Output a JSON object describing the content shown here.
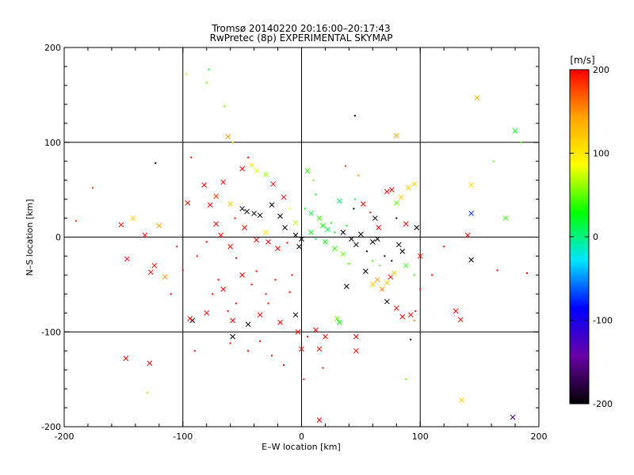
{
  "chart_data": {
    "type": "scatter",
    "title": "Tromsø 20140220 20:16:00–20:17:43",
    "subtitle": "RwPretec (8p) EXPERIMENTAL SKYMAP",
    "xlabel": "E–W location [km]",
    "ylabel": "N–S location [km]",
    "xlim": [
      -200,
      200
    ],
    "ylim": [
      -200,
      200
    ],
    "xticks": [
      -200,
      -100,
      0,
      100,
      200
    ],
    "yticks": [
      -200,
      -100,
      0,
      100,
      200
    ],
    "grid": true,
    "colorbar": {
      "label": "[m/s]",
      "range": [
        -200,
        200
      ],
      "ticks": [
        200,
        100,
        0,
        -100,
        -200
      ],
      "colors": [
        "#000000",
        "#6a00a8",
        "#0000ff",
        "#00e5ff",
        "#00ff00",
        "#ffff00",
        "#ffa500",
        "#ff0000"
      ]
    },
    "points": [
      {
        "x": -190,
        "y": 17,
        "v": 180,
        "m": "dot"
      },
      {
        "x": -176,
        "y": 52,
        "v": 180,
        "m": "dot"
      },
      {
        "x": -152,
        "y": 13,
        "v": 200,
        "m": "cross"
      },
      {
        "x": -147,
        "y": -23,
        "v": 200,
        "m": "cross"
      },
      {
        "x": -142,
        "y": 20,
        "v": 120,
        "m": "cross"
      },
      {
        "x": -132,
        "y": 2,
        "v": 200,
        "m": "cross"
      },
      {
        "x": -127,
        "y": -37,
        "v": 200,
        "m": "cross"
      },
      {
        "x": -124,
        "y": -30,
        "v": 200,
        "m": "cross"
      },
      {
        "x": -120,
        "y": 12,
        "v": 140,
        "m": "cross"
      },
      {
        "x": -115,
        "y": -42,
        "v": 150,
        "m": "cross"
      },
      {
        "x": -148,
        "y": -128,
        "v": 200,
        "m": "cross"
      },
      {
        "x": -128,
        "y": -133,
        "v": 200,
        "m": "cross"
      },
      {
        "x": -130,
        "y": -164,
        "v": 120,
        "m": "dot"
      },
      {
        "x": -123,
        "y": 78,
        "v": -200,
        "m": "dot"
      },
      {
        "x": -97,
        "y": 172,
        "v": 110,
        "m": "dot"
      },
      {
        "x": -78,
        "y": 177,
        "v": 30,
        "m": "dot"
      },
      {
        "x": -80,
        "y": 163,
        "v": 50,
        "m": "dot"
      },
      {
        "x": -65,
        "y": 138,
        "v": 50,
        "m": "dot"
      },
      {
        "x": -62,
        "y": 106,
        "v": 150,
        "m": "cross"
      },
      {
        "x": -58,
        "y": 100,
        "v": 110,
        "m": "dot"
      },
      {
        "x": -93,
        "y": 84,
        "v": 200,
        "m": "dot"
      },
      {
        "x": -96,
        "y": 36,
        "v": 200,
        "m": "cross"
      },
      {
        "x": -82,
        "y": 55,
        "v": 200,
        "m": "cross"
      },
      {
        "x": -77,
        "y": 34,
        "v": 200,
        "m": "cross"
      },
      {
        "x": -72,
        "y": 43,
        "v": 180,
        "m": "cross"
      },
      {
        "x": -66,
        "y": 58,
        "v": 200,
        "m": "cross"
      },
      {
        "x": -60,
        "y": 35,
        "v": 120,
        "m": "cross"
      },
      {
        "x": -50,
        "y": 72,
        "v": 200,
        "m": "cross"
      },
      {
        "x": -45,
        "y": 84,
        "v": 200,
        "m": "dot"
      },
      {
        "x": -42,
        "y": 76,
        "v": 100,
        "m": "cross"
      },
      {
        "x": -38,
        "y": 70,
        "v": 80,
        "m": "cross"
      },
      {
        "x": -30,
        "y": 66,
        "v": 60,
        "m": "cross"
      },
      {
        "x": -24,
        "y": 56,
        "v": 200,
        "m": "cross"
      },
      {
        "x": -15,
        "y": 42,
        "v": 200,
        "m": "cross"
      },
      {
        "x": -50,
        "y": 30,
        "v": -200,
        "m": "cross"
      },
      {
        "x": -46,
        "y": 27,
        "v": -200,
        "m": "cross"
      },
      {
        "x": -40,
        "y": 25,
        "v": -200,
        "m": "cross"
      },
      {
        "x": -35,
        "y": 23,
        "v": -200,
        "m": "cross"
      },
      {
        "x": -25,
        "y": 34,
        "v": -200,
        "m": "cross"
      },
      {
        "x": -18,
        "y": 22,
        "v": -200,
        "m": "cross"
      },
      {
        "x": -14,
        "y": 10,
        "v": -200,
        "m": "cross"
      },
      {
        "x": -5,
        "y": 2,
        "v": -200,
        "m": "cross"
      },
      {
        "x": 0,
        "y": -2,
        "v": -200,
        "m": "cross"
      },
      {
        "x": -2,
        "y": -10,
        "v": -200,
        "m": "cross"
      },
      {
        "x": -56,
        "y": 20,
        "v": 200,
        "m": "dot"
      },
      {
        "x": -72,
        "y": 14,
        "v": 200,
        "m": "cross"
      },
      {
        "x": -68,
        "y": 2,
        "v": 200,
        "m": "cross"
      },
      {
        "x": -60,
        "y": -10,
        "v": 200,
        "m": "cross"
      },
      {
        "x": -55,
        "y": -22,
        "v": 200,
        "m": "dot"
      },
      {
        "x": -48,
        "y": 10,
        "v": 200,
        "m": "cross"
      },
      {
        "x": -38,
        "y": -3,
        "v": 200,
        "m": "cross"
      },
      {
        "x": -30,
        "y": 5,
        "v": 100,
        "m": "cross"
      },
      {
        "x": -28,
        "y": -5,
        "v": 200,
        "m": "cross"
      },
      {
        "x": -20,
        "y": -12,
        "v": 200,
        "m": "cross"
      },
      {
        "x": -12,
        "y": -6,
        "v": 200,
        "m": "dot"
      },
      {
        "x": -92,
        "y": -88,
        "v": -200,
        "m": "cross"
      },
      {
        "x": -94,
        "y": -86,
        "v": 200,
        "m": "cross"
      },
      {
        "x": -80,
        "y": -80,
        "v": 200,
        "m": "cross"
      },
      {
        "x": -75,
        "y": -60,
        "v": 200,
        "m": "dot"
      },
      {
        "x": -70,
        "y": -45,
        "v": 200,
        "m": "dot"
      },
      {
        "x": -66,
        "y": -55,
        "v": 200,
        "m": "cross"
      },
      {
        "x": -62,
        "y": -78,
        "v": 200,
        "m": "dot"
      },
      {
        "x": -58,
        "y": -88,
        "v": 200,
        "m": "cross"
      },
      {
        "x": -55,
        "y": -70,
        "v": 200,
        "m": "dot"
      },
      {
        "x": -50,
        "y": -40,
        "v": 200,
        "m": "cross"
      },
      {
        "x": -45,
        "y": -92,
        "v": -200,
        "m": "cross"
      },
      {
        "x": -42,
        "y": -50,
        "v": 200,
        "m": "dot"
      },
      {
        "x": -38,
        "y": -36,
        "v": 200,
        "m": "dot"
      },
      {
        "x": -35,
        "y": -82,
        "v": 200,
        "m": "cross"
      },
      {
        "x": -30,
        "y": -60,
        "v": 200,
        "m": "dot"
      },
      {
        "x": -28,
        "y": -70,
        "v": 200,
        "m": "dot"
      },
      {
        "x": -22,
        "y": -45,
        "v": 200,
        "m": "dot"
      },
      {
        "x": -18,
        "y": -90,
        "v": 200,
        "m": "cross"
      },
      {
        "x": -10,
        "y": -58,
        "v": 200,
        "m": "dot"
      },
      {
        "x": -5,
        "y": -82,
        "v": -200,
        "m": "cross"
      },
      {
        "x": -3,
        "y": -100,
        "v": 200,
        "m": "cross"
      },
      {
        "x": -8,
        "y": -40,
        "v": 200,
        "m": "dot"
      },
      {
        "x": -58,
        "y": -105,
        "v": -200,
        "m": "cross"
      },
      {
        "x": -60,
        "y": -112,
        "v": 200,
        "m": "dot"
      },
      {
        "x": -45,
        "y": -120,
        "v": 200,
        "m": "dot"
      },
      {
        "x": -35,
        "y": -110,
        "v": 200,
        "m": "dot"
      },
      {
        "x": -25,
        "y": -125,
        "v": 200,
        "m": "dot"
      },
      {
        "x": -15,
        "y": -135,
        "v": 200,
        "m": "dot"
      },
      {
        "x": 0,
        "y": -118,
        "v": 200,
        "m": "cross"
      },
      {
        "x": 5,
        "y": -105,
        "v": 200,
        "m": "dot"
      },
      {
        "x": 12,
        "y": -98,
        "v": 200,
        "m": "cross"
      },
      {
        "x": 15,
        "y": -118,
        "v": 200,
        "m": "cross"
      },
      {
        "x": 18,
        "y": -138,
        "v": 200,
        "m": "dot"
      },
      {
        "x": 20,
        "y": -105,
        "v": 200,
        "m": "cross"
      },
      {
        "x": 15,
        "y": -193,
        "v": 200,
        "m": "cross"
      },
      {
        "x": 2,
        "y": -150,
        "v": 200,
        "m": "dot"
      },
      {
        "x": -90,
        "y": -120,
        "v": 200,
        "m": "dot"
      },
      {
        "x": -110,
        "y": -60,
        "v": 200,
        "m": "dot"
      },
      {
        "x": -100,
        "y": -35,
        "v": 200,
        "m": "dot"
      },
      {
        "x": -88,
        "y": -20,
        "v": 200,
        "m": "dot"
      },
      {
        "x": -80,
        "y": -5,
        "v": 200,
        "m": "dot"
      },
      {
        "x": -105,
        "y": -10,
        "v": 200,
        "m": "dot"
      },
      {
        "x": 3,
        "y": 30,
        "v": 20,
        "m": "dot"
      },
      {
        "x": 8,
        "y": 25,
        "v": 10,
        "m": "cross"
      },
      {
        "x": 5,
        "y": 70,
        "v": 40,
        "m": "cross"
      },
      {
        "x": 10,
        "y": 60,
        "v": 50,
        "m": "dot"
      },
      {
        "x": 12,
        "y": 45,
        "v": 30,
        "m": "dot"
      },
      {
        "x": 15,
        "y": 20,
        "v": 40,
        "m": "cross"
      },
      {
        "x": 18,
        "y": 12,
        "v": 30,
        "m": "cross"
      },
      {
        "x": 22,
        "y": 8,
        "v": 10,
        "m": "cross"
      },
      {
        "x": 25,
        "y": 15,
        "v": 20,
        "m": "dot"
      },
      {
        "x": 28,
        "y": 5,
        "v": 30,
        "m": "dot"
      },
      {
        "x": 8,
        "y": 5,
        "v": 20,
        "m": "cross"
      },
      {
        "x": 12,
        "y": -2,
        "v": 10,
        "m": "dot"
      },
      {
        "x": 20,
        "y": -5,
        "v": 30,
        "m": "cross"
      },
      {
        "x": 28,
        "y": -12,
        "v": 40,
        "m": "cross"
      },
      {
        "x": 35,
        "y": -18,
        "v": 50,
        "m": "cross"
      },
      {
        "x": 40,
        "y": -28,
        "v": 40,
        "m": "dot"
      },
      {
        "x": -5,
        "y": 15,
        "v": 70,
        "m": "cross"
      },
      {
        "x": -10,
        "y": 30,
        "v": 80,
        "m": "dot"
      },
      {
        "x": 32,
        "y": 38,
        "v": 10,
        "m": "cross"
      },
      {
        "x": 45,
        "y": 40,
        "v": 20,
        "m": "dot"
      },
      {
        "x": 38,
        "y": 12,
        "v": 20,
        "m": "dot"
      },
      {
        "x": 44,
        "y": 30,
        "v": -200,
        "m": "dot"
      },
      {
        "x": 45,
        "y": 128,
        "v": -200,
        "m": "dot"
      },
      {
        "x": 80,
        "y": 107,
        "v": 140,
        "m": "cross"
      },
      {
        "x": 37,
        "y": 75,
        "v": 180,
        "m": "dot"
      },
      {
        "x": 48,
        "y": 65,
        "v": 150,
        "m": "dot"
      },
      {
        "x": 52,
        "y": 35,
        "v": 200,
        "m": "cross"
      },
      {
        "x": 58,
        "y": 26,
        "v": 200,
        "m": "dot"
      },
      {
        "x": 62,
        "y": 20,
        "v": -200,
        "m": "cross"
      },
      {
        "x": 65,
        "y": 10,
        "v": 200,
        "m": "cross"
      },
      {
        "x": 72,
        "y": 48,
        "v": 200,
        "m": "cross"
      },
      {
        "x": 76,
        "y": 50,
        "v": 200,
        "m": "cross"
      },
      {
        "x": 80,
        "y": 36,
        "v": 50,
        "m": "cross"
      },
      {
        "x": 84,
        "y": 42,
        "v": 120,
        "m": "cross"
      },
      {
        "x": 90,
        "y": 52,
        "v": 120,
        "m": "cross"
      },
      {
        "x": 95,
        "y": 56,
        "v": 120,
        "m": "cross"
      },
      {
        "x": 88,
        "y": 14,
        "v": 200,
        "m": "cross"
      },
      {
        "x": 97,
        "y": 10,
        "v": -200,
        "m": "cross"
      },
      {
        "x": 80,
        "y": 20,
        "v": -200,
        "m": "dot"
      },
      {
        "x": 35,
        "y": 5,
        "v": -200,
        "m": "cross"
      },
      {
        "x": 42,
        "y": -2,
        "v": -200,
        "m": "cross"
      },
      {
        "x": 46,
        "y": -8,
        "v": -200,
        "m": "cross"
      },
      {
        "x": 50,
        "y": 3,
        "v": -200,
        "m": "cross"
      },
      {
        "x": 55,
        "y": -15,
        "v": -200,
        "m": "dot"
      },
      {
        "x": 60,
        "y": -5,
        "v": -200,
        "m": "cross"
      },
      {
        "x": 64,
        "y": -2,
        "v": -200,
        "m": "cross"
      },
      {
        "x": 70,
        "y": -20,
        "v": -200,
        "m": "dot"
      },
      {
        "x": 76,
        "y": -25,
        "v": -200,
        "m": "dot"
      },
      {
        "x": 82,
        "y": -8,
        "v": -200,
        "m": "cross"
      },
      {
        "x": 85,
        "y": -15,
        "v": -200,
        "m": "cross"
      },
      {
        "x": 54,
        "y": -36,
        "v": -200,
        "m": "cross"
      },
      {
        "x": 38,
        "y": -52,
        "v": -200,
        "m": "cross"
      },
      {
        "x": 60,
        "y": -25,
        "v": 40,
        "m": "dot"
      },
      {
        "x": 66,
        "y": -30,
        "v": 40,
        "m": "dot"
      },
      {
        "x": 88,
        "y": -30,
        "v": 40,
        "m": "cross"
      },
      {
        "x": 95,
        "y": -40,
        "v": 40,
        "m": "dot"
      },
      {
        "x": 60,
        "y": -50,
        "v": 120,
        "m": "cross"
      },
      {
        "x": 64,
        "y": -45,
        "v": 140,
        "m": "cross"
      },
      {
        "x": 68,
        "y": -55,
        "v": 150,
        "m": "cross"
      },
      {
        "x": 72,
        "y": -48,
        "v": 120,
        "m": "cross"
      },
      {
        "x": 75,
        "y": -42,
        "v": 200,
        "m": "cross"
      },
      {
        "x": 78,
        "y": -38,
        "v": 120,
        "m": "cross"
      },
      {
        "x": 72,
        "y": -68,
        "v": -200,
        "m": "cross"
      },
      {
        "x": 80,
        "y": -75,
        "v": 200,
        "m": "cross"
      },
      {
        "x": 85,
        "y": -84,
        "v": 200,
        "m": "cross"
      },
      {
        "x": 92,
        "y": -82,
        "v": 200,
        "m": "cross"
      },
      {
        "x": 95,
        "y": -88,
        "v": 150,
        "m": "dot"
      },
      {
        "x": 96,
        "y": -78,
        "v": 200,
        "m": "dot"
      },
      {
        "x": 100,
        "y": -55,
        "v": 200,
        "m": "dot"
      },
      {
        "x": 30,
        "y": -86,
        "v": 50,
        "m": "cross"
      },
      {
        "x": 32,
        "y": -90,
        "v": 30,
        "m": "cross"
      },
      {
        "x": 46,
        "y": -105,
        "v": 200,
        "m": "cross"
      },
      {
        "x": 46,
        "y": -120,
        "v": 200,
        "m": "cross"
      },
      {
        "x": 88,
        "y": -150,
        "v": 50,
        "m": "dot"
      },
      {
        "x": 92,
        "y": -108,
        "v": -200,
        "m": "dot"
      },
      {
        "x": 130,
        "y": -78,
        "v": 200,
        "m": "cross"
      },
      {
        "x": 134,
        "y": -87,
        "v": 200,
        "m": "cross"
      },
      {
        "x": 135,
        "y": -172,
        "v": 120,
        "m": "cross"
      },
      {
        "x": 143,
        "y": 55,
        "v": 110,
        "m": "cross"
      },
      {
        "x": 143,
        "y": 25,
        "v": -80,
        "m": "cross"
      },
      {
        "x": 140,
        "y": 2,
        "v": 200,
        "m": "cross"
      },
      {
        "x": 143,
        "y": -24,
        "v": -200,
        "m": "cross"
      },
      {
        "x": 148,
        "y": 147,
        "v": 130,
        "m": "cross"
      },
      {
        "x": 162,
        "y": 80,
        "v": 50,
        "m": "dot"
      },
      {
        "x": 165,
        "y": -35,
        "v": 200,
        "m": "dot"
      },
      {
        "x": 172,
        "y": 20,
        "v": 40,
        "m": "cross"
      },
      {
        "x": 180,
        "y": 112,
        "v": 20,
        "m": "cross"
      },
      {
        "x": 185,
        "y": 100,
        "v": 50,
        "m": "dot"
      },
      {
        "x": 190,
        "y": -38,
        "v": 200,
        "m": "dot"
      },
      {
        "x": 178,
        "y": -190,
        "v": -160,
        "m": "cross"
      },
      {
        "x": 100,
        "y": -20,
        "v": 200,
        "m": "cross"
      },
      {
        "x": 110,
        "y": -40,
        "v": 200,
        "m": "dot"
      },
      {
        "x": 120,
        "y": -10,
        "v": 200,
        "m": "dot"
      }
    ]
  }
}
